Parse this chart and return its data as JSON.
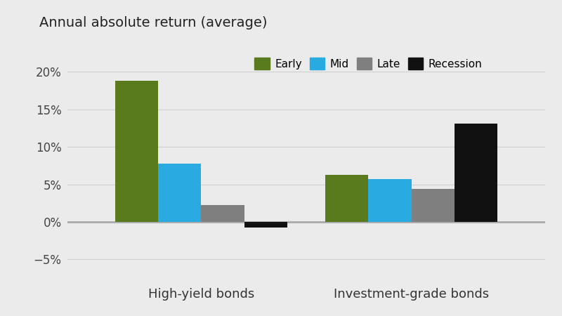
{
  "title": "Annual absolute return (average)",
  "categories": [
    "High-yield bonds",
    "Investment-grade bonds"
  ],
  "series": [
    {
      "label": "Early",
      "color": "#5a7a1e",
      "values": [
        18.8,
        6.3
      ]
    },
    {
      "label": "Mid",
      "color": "#29abe2",
      "values": [
        7.8,
        5.7
      ]
    },
    {
      "label": "Late",
      "color": "#7f7f7f",
      "values": [
        2.2,
        4.4
      ]
    },
    {
      "label": "Recession",
      "color": "#111111",
      "values": [
        -0.8,
        13.1
      ]
    }
  ],
  "ylim": [
    -7.5,
    22
  ],
  "yticks": [
    -5,
    0,
    5,
    10,
    15,
    20
  ],
  "ytick_labels": [
    "−5%",
    "0%",
    "5%",
    "10%",
    "15%",
    "20%"
  ],
  "background_color": "#ebebeb",
  "plot_bg_color": "#ebebeb",
  "grid_color": "#d0d0d0",
  "zero_line_color": "#aaaaaa",
  "bar_width": 0.09,
  "group_centers": [
    0.28,
    0.72
  ],
  "xlim": [
    0.0,
    1.0
  ],
  "title_fontsize": 14,
  "legend_fontsize": 11,
  "tick_fontsize": 12,
  "xlabel_fontsize": 13
}
